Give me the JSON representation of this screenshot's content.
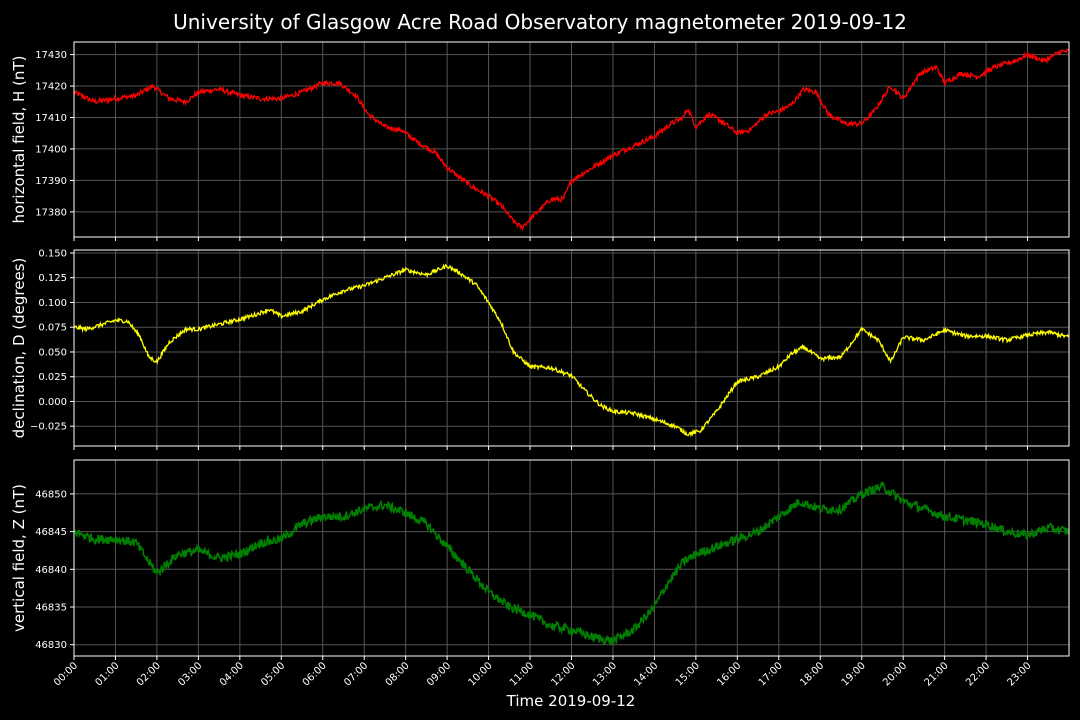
{
  "chart_data": {
    "type": "line",
    "title": "University of Glasgow Acre Road Observatory magnetometer 2019-09-12",
    "xlabel": "Time 2019-09-12",
    "x_ticks": [
      "00:00",
      "01:00",
      "02:00",
      "03:00",
      "04:00",
      "05:00",
      "06:00",
      "07:00",
      "08:00",
      "09:00",
      "10:00",
      "11:00",
      "12:00",
      "13:00",
      "14:00",
      "15:00",
      "16:00",
      "17:00",
      "18:00",
      "19:00",
      "20:00",
      "21:00",
      "22:00",
      "23:00"
    ],
    "x_range_hours": [
      0,
      24
    ],
    "grid": true,
    "background": "#000000",
    "panels": [
      {
        "ylabel": "horizontal field, H (nT)",
        "color": "#ff0000",
        "ylim": [
          17372,
          17434
        ],
        "yticks": [
          "17380",
          "17390",
          "17400",
          "17410",
          "17420",
          "17430"
        ],
        "ytick_values": [
          17380,
          17390,
          17400,
          17410,
          17420,
          17430
        ],
        "noise": 0.8,
        "points": [
          [
            0,
            17418
          ],
          [
            0.5,
            17415
          ],
          [
            1,
            17416
          ],
          [
            1.5,
            17417
          ],
          [
            1.9,
            17420
          ],
          [
            2.3,
            17416
          ],
          [
            2.7,
            17415
          ],
          [
            3,
            17418
          ],
          [
            3.5,
            17419
          ],
          [
            4,
            17417
          ],
          [
            4.5,
            17416
          ],
          [
            5,
            17416
          ],
          [
            5.5,
            17418
          ],
          [
            6,
            17421
          ],
          [
            6.4,
            17421
          ],
          [
            6.8,
            17417
          ],
          [
            7.1,
            17411
          ],
          [
            7.5,
            17407
          ],
          [
            7.9,
            17406
          ],
          [
            8.3,
            17402
          ],
          [
            8.7,
            17399
          ],
          [
            9,
            17394
          ],
          [
            9.3,
            17391
          ],
          [
            9.6,
            17388
          ],
          [
            10,
            17385
          ],
          [
            10.3,
            17382
          ],
          [
            10.6,
            17377
          ],
          [
            10.8,
            17375
          ],
          [
            11.1,
            17379
          ],
          [
            11.5,
            17384
          ],
          [
            11.8,
            17384
          ],
          [
            12,
            17390
          ],
          [
            12.5,
            17394
          ],
          [
            13,
            17398
          ],
          [
            13.5,
            17401
          ],
          [
            14,
            17404
          ],
          [
            14.4,
            17408
          ],
          [
            14.7,
            17410
          ],
          [
            14.8,
            17413
          ],
          [
            15,
            17407
          ],
          [
            15.3,
            17411
          ],
          [
            15.6,
            17409
          ],
          [
            16,
            17405
          ],
          [
            16.3,
            17406
          ],
          [
            16.7,
            17411
          ],
          [
            17,
            17412
          ],
          [
            17.3,
            17414
          ],
          [
            17.6,
            17419
          ],
          [
            17.9,
            17418
          ],
          [
            18.2,
            17411
          ],
          [
            18.6,
            17408
          ],
          [
            19,
            17408
          ],
          [
            19.3,
            17412
          ],
          [
            19.7,
            17420
          ],
          [
            20,
            17416
          ],
          [
            20.4,
            17424
          ],
          [
            20.8,
            17426
          ],
          [
            21,
            17421
          ],
          [
            21.4,
            17424
          ],
          [
            21.8,
            17423
          ],
          [
            22.2,
            17426
          ],
          [
            22.7,
            17428
          ],
          [
            23,
            17430
          ],
          [
            23.4,
            17428
          ],
          [
            23.8,
            17431
          ],
          [
            24,
            17431
          ]
        ]
      },
      {
        "ylabel": "declination, D (degrees)",
        "color": "#ffff00",
        "ylim": [
          -0.045,
          0.153
        ],
        "yticks": [
          "0.150",
          "0.125",
          "0.100",
          "0.075",
          "0.050",
          "0.025",
          "0.000",
          "−0.025"
        ],
        "ytick_values": [
          0.15,
          0.125,
          0.1,
          0.075,
          0.05,
          0.025,
          0.0,
          -0.025
        ],
        "noise": 0.002,
        "points": [
          [
            0,
            0.075
          ],
          [
            0.3,
            0.073
          ],
          [
            0.7,
            0.078
          ],
          [
            1,
            0.082
          ],
          [
            1.3,
            0.081
          ],
          [
            1.6,
            0.065
          ],
          [
            1.8,
            0.045
          ],
          [
            2,
            0.04
          ],
          [
            2.3,
            0.06
          ],
          [
            2.7,
            0.073
          ],
          [
            3,
            0.073
          ],
          [
            3.5,
            0.078
          ],
          [
            4,
            0.083
          ],
          [
            4.4,
            0.088
          ],
          [
            4.7,
            0.093
          ],
          [
            5,
            0.086
          ],
          [
            5.5,
            0.091
          ],
          [
            6,
            0.103
          ],
          [
            6.5,
            0.112
          ],
          [
            7,
            0.117
          ],
          [
            7.5,
            0.125
          ],
          [
            8,
            0.133
          ],
          [
            8.5,
            0.128
          ],
          [
            9,
            0.137
          ],
          [
            9.3,
            0.13
          ],
          [
            9.7,
            0.118
          ],
          [
            10,
            0.1
          ],
          [
            10.3,
            0.08
          ],
          [
            10.6,
            0.05
          ],
          [
            11,
            0.035
          ],
          [
            11.5,
            0.034
          ],
          [
            12,
            0.026
          ],
          [
            12.3,
            0.012
          ],
          [
            12.7,
            -0.004
          ],
          [
            13,
            -0.01
          ],
          [
            13.5,
            -0.012
          ],
          [
            14,
            -0.018
          ],
          [
            14.5,
            -0.025
          ],
          [
            14.8,
            -0.033
          ],
          [
            15.1,
            -0.03
          ],
          [
            15.5,
            -0.01
          ],
          [
            16,
            0.02
          ],
          [
            16.5,
            0.025
          ],
          [
            17,
            0.035
          ],
          [
            17.3,
            0.048
          ],
          [
            17.6,
            0.055
          ],
          [
            18,
            0.043
          ],
          [
            18.5,
            0.045
          ],
          [
            19,
            0.073
          ],
          [
            19.4,
            0.062
          ],
          [
            19.7,
            0.04
          ],
          [
            20,
            0.065
          ],
          [
            20.5,
            0.062
          ],
          [
            21,
            0.072
          ],
          [
            21.5,
            0.066
          ],
          [
            22,
            0.066
          ],
          [
            22.5,
            0.062
          ],
          [
            23,
            0.067
          ],
          [
            23.5,
            0.07
          ],
          [
            24,
            0.065
          ]
        ]
      },
      {
        "ylabel": "vertical field, Z (nT)",
        "color": "#008000",
        "ylim": [
          46828.5,
          46854.5
        ],
        "yticks": [
          "46830",
          "46835",
          "46840",
          "46845",
          "46850"
        ],
        "ytick_values": [
          46830,
          46835,
          46840,
          46845,
          46850
        ],
        "noise": 0.6,
        "points": [
          [
            0,
            46845
          ],
          [
            0.5,
            46844
          ],
          [
            1,
            46844
          ],
          [
            1.5,
            46843.5
          ],
          [
            1.8,
            46841
          ],
          [
            2,
            46839.5
          ],
          [
            2.5,
            46842
          ],
          [
            3,
            46842.5
          ],
          [
            3.5,
            46841.5
          ],
          [
            4,
            46842
          ],
          [
            4.5,
            46843.5
          ],
          [
            5,
            46844
          ],
          [
            5.5,
            46846
          ],
          [
            6,
            46847
          ],
          [
            6.5,
            46847
          ],
          [
            7,
            46848
          ],
          [
            7.5,
            46848.5
          ],
          [
            8,
            46847.5
          ],
          [
            8.5,
            46846
          ],
          [
            9,
            46843
          ],
          [
            9.5,
            46840
          ],
          [
            10,
            46837
          ],
          [
            10.5,
            46835
          ],
          [
            11,
            46834
          ],
          [
            11.5,
            46832.5
          ],
          [
            12,
            46832
          ],
          [
            12.5,
            46831
          ],
          [
            13,
            46830.5
          ],
          [
            13.5,
            46832
          ],
          [
            14,
            46835
          ],
          [
            14.3,
            46838
          ],
          [
            14.7,
            46841
          ],
          [
            15,
            46842
          ],
          [
            15.5,
            46843
          ],
          [
            16,
            46844
          ],
          [
            16.5,
            46845
          ],
          [
            17,
            46847
          ],
          [
            17.5,
            46849
          ],
          [
            18,
            46848
          ],
          [
            18.5,
            46848
          ],
          [
            19,
            46850
          ],
          [
            19.5,
            46851
          ],
          [
            20,
            46849
          ],
          [
            20.5,
            46848
          ],
          [
            21,
            46847
          ],
          [
            21.5,
            46846.5
          ],
          [
            22,
            46846
          ],
          [
            22.5,
            46845
          ],
          [
            23,
            46844.5
          ],
          [
            23.5,
            46845.5
          ],
          [
            24,
            46845
          ]
        ]
      }
    ]
  }
}
